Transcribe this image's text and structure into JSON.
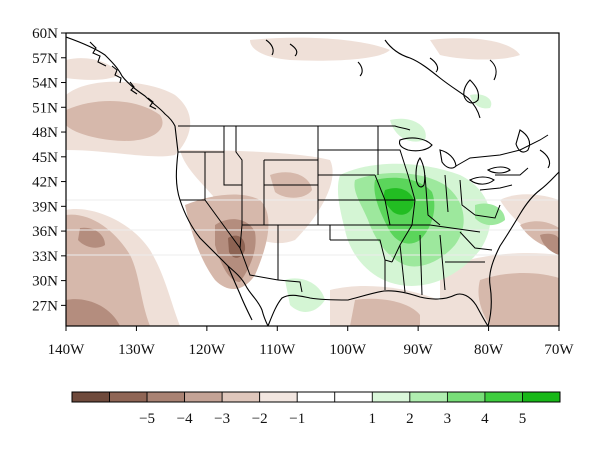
{
  "map": {
    "lat_ticks": [
      {
        "value": 60,
        "label": "60N"
      },
      {
        "value": 57,
        "label": "57N"
      },
      {
        "value": 54,
        "label": "54N"
      },
      {
        "value": 51,
        "label": "51N"
      },
      {
        "value": 48,
        "label": "48N"
      },
      {
        "value": 45,
        "label": "45N"
      },
      {
        "value": 42,
        "label": "42N"
      },
      {
        "value": 39,
        "label": "39N"
      },
      {
        "value": 36,
        "label": "36N"
      },
      {
        "value": 33,
        "label": "33N"
      },
      {
        "value": 30,
        "label": "30N"
      },
      {
        "value": 27,
        "label": "27N"
      }
    ],
    "lon_ticks": [
      {
        "value": -140,
        "label": "140W"
      },
      {
        "value": -130,
        "label": "130W"
      },
      {
        "value": -120,
        "label": "120W"
      },
      {
        "value": -110,
        "label": "110W"
      },
      {
        "value": -100,
        "label": "100W"
      },
      {
        "value": -90,
        "label": "90W"
      },
      {
        "value": -80,
        "label": "80W"
      },
      {
        "value": -70,
        "label": "70W"
      }
    ],
    "lon_range": [
      -140,
      -70
    ],
    "lat_range": [
      24.5,
      60
    ]
  },
  "colorbar": {
    "colors": [
      "#6f4a3c",
      "#8f6555",
      "#a98273",
      "#c4a396",
      "#dfc7bc",
      "#f2e6e0",
      "#ffffff",
      "#ffffff",
      "#daf7da",
      "#b0eeb0",
      "#78de78",
      "#3fce3f",
      "#18b818"
    ],
    "labels": [
      "−5",
      "−4",
      "−3",
      "−2",
      "−1",
      "1",
      "2",
      "3",
      "4",
      "5"
    ]
  }
}
